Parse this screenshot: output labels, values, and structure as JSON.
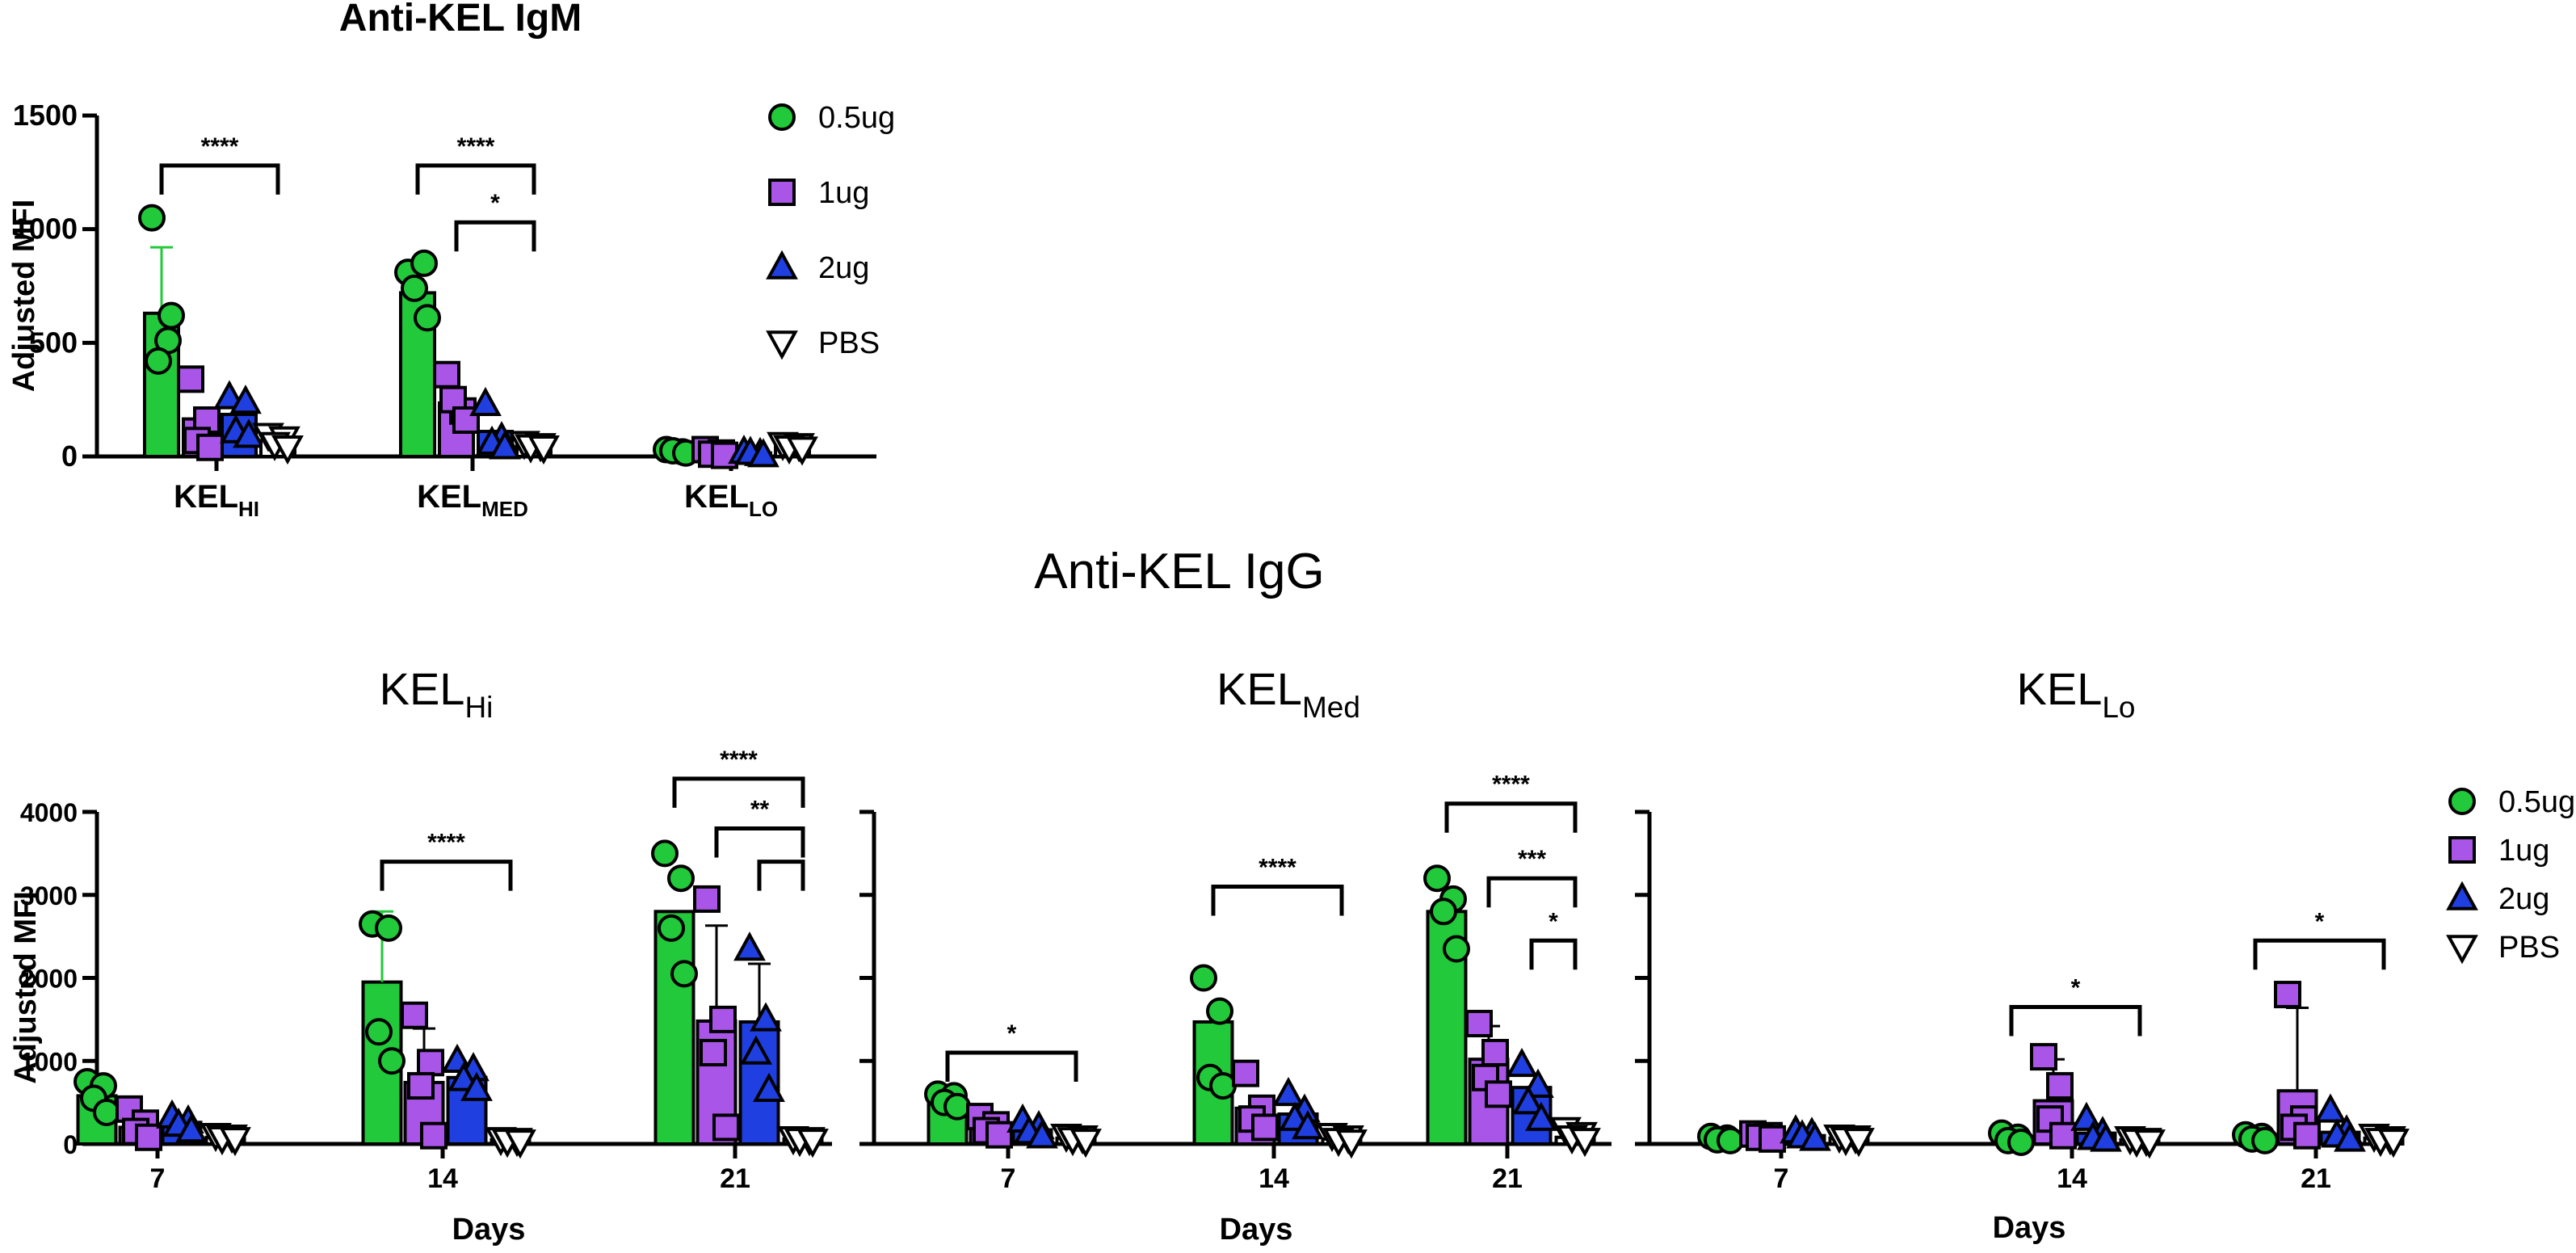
{
  "colors": {
    "0.5ug": "#22c93a",
    "1ug": "#a855e8",
    "2ug": "#1f3fe0",
    "PBS": "#ffffff"
  },
  "markers": {
    "0.5ug": "circle",
    "1ug": "square",
    "2ug": "triangle-up",
    "PBS": "triangle-down"
  },
  "legend_items": [
    "0.5ug",
    "1ug",
    "2ug",
    "PBS"
  ],
  "igg_title": "Anti-KEL IgG",
  "chart_data": [
    {
      "type": "bar",
      "title": "Anti-KEL IgM",
      "ylabel": "Adjusted MFI",
      "xlabel": "",
      "ylim": [
        0,
        1500
      ],
      "yticks": [
        0,
        500,
        1000,
        1500
      ],
      "legend": "top-right",
      "groups": [
        {
          "base": "KEL",
          "sub": "HI"
        },
        {
          "base": "KEL",
          "sub": "MED"
        },
        {
          "base": "KEL",
          "sub": "LO"
        }
      ],
      "series": [
        {
          "name": "0.5ug",
          "means": [
            630,
            720,
            25
          ],
          "errors": [
            290,
            0,
            0
          ],
          "points": [
            [
              1050,
              510,
              420,
              620
            ],
            [
              810,
              850,
              740,
              610
            ],
            [
              30,
              20,
              25,
              15
            ]
          ]
        },
        {
          "name": "1ug",
          "means": [
            165,
            235,
            18
          ],
          "errors": [
            0,
            0,
            0
          ],
          "points": [
            [
              340,
              160,
              70,
              40
            ],
            [
              360,
              200,
              250,
              160
            ],
            [
              30,
              15,
              10,
              5
            ]
          ]
        },
        {
          "name": "2ug",
          "means": [
            185,
            110,
            15
          ],
          "errors": [
            0,
            0,
            0
          ],
          "points": [
            [
              260,
              240,
              110,
              90
            ],
            [
              230,
              80,
              60,
              40
            ],
            [
              20,
              10,
              15,
              5
            ]
          ]
        },
        {
          "name": "PBS",
          "means": [
            70,
            55,
            45
          ],
          "errors": [
            0,
            0,
            0
          ],
          "points": [
            [
              95,
              80,
              55,
              40
            ],
            [
              60,
              50,
              45,
              40
            ],
            [
              55,
              50,
              40,
              35
            ]
          ]
        }
      ],
      "significance": [
        {
          "group": 0,
          "from": 0,
          "to": 3,
          "label": "****",
          "level": 1280
        },
        {
          "group": 1,
          "from": 0,
          "to": 3,
          "label": "****",
          "level": 1280
        },
        {
          "group": 1,
          "from": 1,
          "to": 3,
          "label": "*",
          "level": 1030
        }
      ]
    },
    {
      "type": "bar",
      "title": {
        "base": "KEL",
        "sub": "Hi"
      },
      "ylabel": "Adjusted MFI",
      "xlabel": "Days",
      "ylim": [
        0,
        4000
      ],
      "yticks": [
        0,
        1000,
        2000,
        3000,
        4000
      ],
      "groups": [
        {
          "base": "7"
        },
        {
          "base": "14"
        },
        {
          "base": "21"
        }
      ],
      "series": [
        {
          "name": "0.5ug",
          "means": [
            580,
            1950,
            2800
          ],
          "errors": [
            0,
            850,
            0
          ],
          "points": [
            [
              750,
              700,
              550,
              380
            ],
            [
              2650,
              2600,
              1350,
              1000
            ],
            [
              3500,
              3200,
              2600,
              2050
            ]
          ]
        },
        {
          "name": "1ug",
          "means": [
            200,
            740,
            1480
          ],
          "errors": [
            0,
            650,
            1150
          ],
          "points": [
            [
              420,
              250,
              150,
              80
            ],
            [
              1550,
              980,
              700,
              100
            ],
            [
              2950,
              1500,
              1100,
              200
            ]
          ]
        },
        {
          "name": "2ug",
          "means": [
            260,
            800,
            1470
          ],
          "errors": [
            0,
            0,
            700
          ],
          "points": [
            [
              330,
              270,
              230,
              160
            ],
            [
              1000,
              900,
              780,
              660
            ],
            [
              2350,
              1500,
              1100,
              650
            ]
          ]
        },
        {
          "name": "PBS",
          "means": [
            80,
            50,
            60
          ],
          "errors": [
            0,
            0,
            0
          ],
          "points": [
            [
              110,
              90,
              70,
              60
            ],
            [
              60,
              50,
              40,
              30
            ],
            [
              70,
              60,
              50,
              40
            ]
          ]
        }
      ],
      "significance": [
        {
          "group": 1,
          "from": 0,
          "to": 3,
          "label": "****",
          "level": 3400
        },
        {
          "group": 2,
          "from": 0,
          "to": 3,
          "label": "****",
          "level": 4400
        },
        {
          "group": 2,
          "from": 1,
          "to": 3,
          "label": "**",
          "level": 3800
        },
        {
          "group": 2,
          "from": 2,
          "to": 3,
          "label": "",
          "level": 3400
        }
      ]
    },
    {
      "type": "bar",
      "title": {
        "base": "KEL",
        "sub": "Med"
      },
      "ylabel": "",
      "xlabel": "Days",
      "ylim": [
        0,
        4000
      ],
      "yticks": [
        0,
        1000,
        2000,
        3000,
        4000
      ],
      "groups": [
        {
          "base": "7"
        },
        {
          "base": "14"
        },
        {
          "base": "21"
        }
      ],
      "series": [
        {
          "name": "0.5ug",
          "means": [
            510,
            1470,
            2800
          ],
          "errors": [
            0,
            0,
            0
          ],
          "points": [
            [
              600,
              580,
              500,
              450
            ],
            [
              2000,
              1600,
              800,
              700
            ],
            [
              3200,
              2950,
              2800,
              2350
            ]
          ]
        },
        {
          "name": "1ug",
          "means": [
            260,
            430,
            1020
          ],
          "errors": [
            0,
            0,
            400
          ],
          "points": [
            [
              330,
              230,
              160,
              110
            ],
            [
              850,
              430,
              300,
              200
            ],
            [
              1450,
              1100,
              800,
              600
            ]
          ]
        },
        {
          "name": "2ug",
          "means": [
            170,
            360,
            680
          ],
          "errors": [
            0,
            0,
            0
          ],
          "points": [
            [
              280,
              200,
              140,
              90
            ],
            [
              600,
              400,
              300,
              200
            ],
            [
              950,
              700,
              500,
              300
            ]
          ]
        },
        {
          "name": "PBS",
          "means": [
            70,
            60,
            80
          ],
          "errors": [
            0,
            0,
            0
          ],
          "points": [
            [
              100,
              80,
              60,
              40
            ],
            [
              110,
              80,
              50,
              30
            ],
            [
              180,
              120,
              80,
              50
            ]
          ]
        }
      ],
      "significance": [
        {
          "group": 0,
          "from": 0,
          "to": 3,
          "label": "*",
          "level": 1100
        },
        {
          "group": 1,
          "from": 0,
          "to": 3,
          "label": "****",
          "level": 3100
        },
        {
          "group": 2,
          "from": 0,
          "to": 3,
          "label": "****",
          "level": 4100
        },
        {
          "group": 2,
          "from": 1,
          "to": 3,
          "label": "***",
          "level": 3200
        },
        {
          "group": 2,
          "from": 2,
          "to": 3,
          "label": "*",
          "level": 2450
        }
      ]
    },
    {
      "type": "bar",
      "title": {
        "base": "KEL",
        "sub": "Lo"
      },
      "ylabel": "",
      "xlabel": "Days",
      "ylim": [
        0,
        4000
      ],
      "yticks": [
        0,
        1000,
        2000,
        3000,
        4000
      ],
      "legend": "right",
      "groups": [
        {
          "base": "7"
        },
        {
          "base": "14"
        },
        {
          "base": "21"
        }
      ],
      "series": [
        {
          "name": "0.5ug",
          "means": [
            60,
            60,
            70
          ],
          "errors": [
            0,
            0,
            0
          ],
          "points": [
            [
              90,
              70,
              50,
              40
            ],
            [
              130,
              80,
              40,
              20
            ],
            [
              110,
              90,
              60,
              40
            ]
          ]
        },
        {
          "name": "1ug",
          "means": [
            90,
            520,
            640
          ],
          "errors": [
            0,
            500,
            1000
          ],
          "points": [
            [
              120,
              100,
              80,
              60
            ],
            [
              1050,
              700,
              300,
              100
            ],
            [
              1800,
              300,
              200,
              100
            ]
          ]
        },
        {
          "name": "2ug",
          "means": [
            100,
            130,
            140
          ],
          "errors": [
            0,
            0,
            0
          ],
          "points": [
            [
              150,
              120,
              90,
              60
            ],
            [
              300,
              130,
              70,
              50
            ],
            [
              400,
              150,
              100,
              50
            ]
          ]
        },
        {
          "name": "PBS",
          "means": [
            70,
            50,
            70
          ],
          "errors": [
            0,
            0,
            0
          ],
          "points": [
            [
              90,
              80,
              60,
              50
            ],
            [
              70,
              50,
              40,
              30
            ],
            [
              100,
              70,
              50,
              40
            ]
          ]
        }
      ],
      "significance": [
        {
          "group": 1,
          "from": 0,
          "to": 3,
          "label": "*",
          "level": 1650
        },
        {
          "group": 2,
          "from": 0,
          "to": 3,
          "label": "*",
          "level": 2450
        }
      ]
    }
  ]
}
